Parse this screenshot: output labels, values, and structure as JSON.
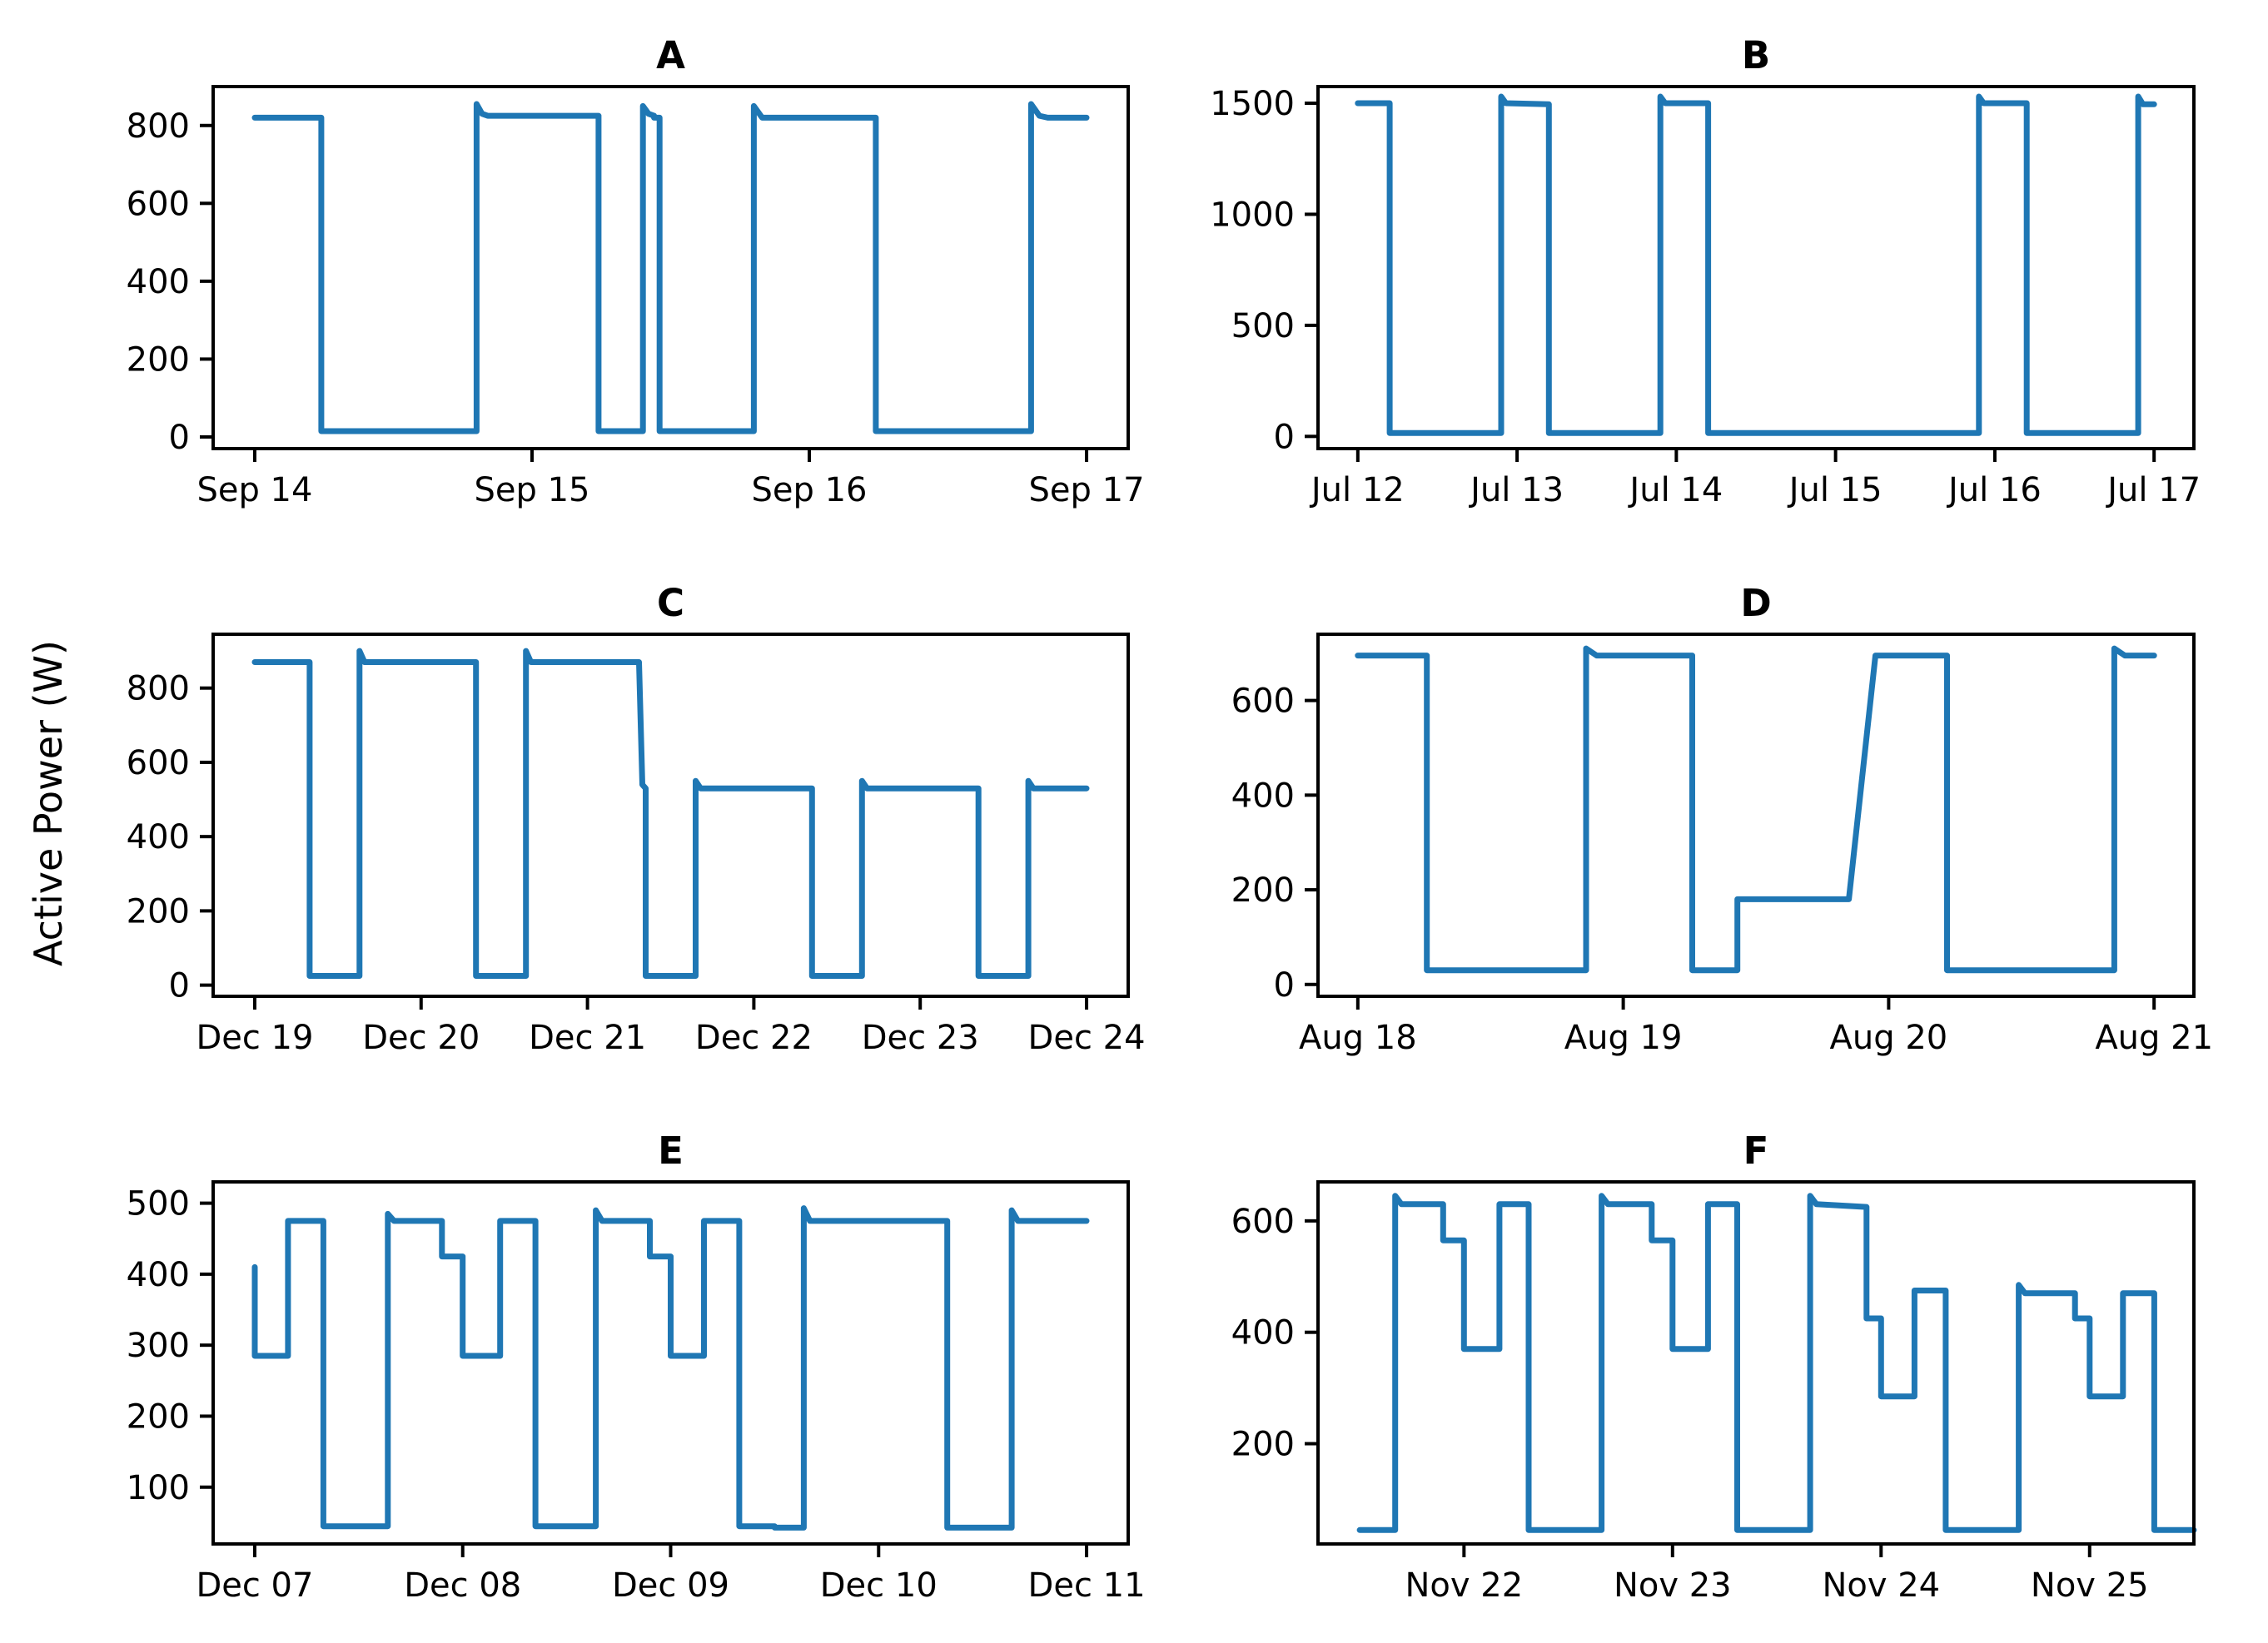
{
  "figure": {
    "ylabel": "Active Power (W)",
    "line_color": "#1f77b4"
  },
  "chart_data": [
    {
      "type": "line",
      "title": "A",
      "xlabel": "",
      "ylabel": "Active Power (W)",
      "xlim": [
        -0.15,
        3.15
      ],
      "ylim": [
        -30,
        900
      ],
      "xticks": [
        0,
        1,
        2,
        3
      ],
      "xtick_labels": [
        "Sep 14",
        "Sep 15",
        "Sep 16",
        "Sep 17"
      ],
      "yticks": [
        0,
        200,
        400,
        600,
        800
      ],
      "ytick_labels": [
        "0",
        "200",
        "400",
        "600",
        "800"
      ],
      "series": [
        {
          "name": "Active Power",
          "x": [
            0,
            0.24,
            0.24,
            0.8,
            0.8,
            0.82,
            0.84,
            1.24,
            1.24,
            1.4,
            1.4,
            1.42,
            1.44,
            1.44,
            1.46,
            1.46,
            1.8,
            1.8,
            1.83,
            2.24,
            2.24,
            2.8,
            2.8,
            2.83,
            2.86,
            3.0
          ],
          "y": [
            820,
            820,
            15,
            15,
            855,
            830,
            825,
            825,
            15,
            15,
            850,
            830,
            825,
            820,
            820,
            15,
            15,
            850,
            820,
            820,
            15,
            15,
            855,
            825,
            820,
            820
          ]
        }
      ]
    },
    {
      "type": "line",
      "title": "B",
      "xlabel": "",
      "ylabel": "",
      "xlim": [
        -0.25,
        5.25
      ],
      "ylim": [
        -55,
        1575
      ],
      "xticks": [
        0,
        1,
        2,
        3,
        4,
        5
      ],
      "xtick_labels": [
        "Jul 12",
        "Jul 13",
        "Jul 14",
        "Jul 15",
        "Jul 16",
        "Jul 17"
      ],
      "yticks": [
        0,
        500,
        1000,
        1500
      ],
      "ytick_labels": [
        "0",
        "500",
        "1000",
        "1500"
      ],
      "series": [
        {
          "name": "Active Power",
          "x": [
            0,
            0.2,
            0.2,
            0.9,
            0.9,
            0.93,
            1.2,
            1.2,
            1.9,
            1.9,
            1.93,
            2.2,
            2.2,
            3.9,
            3.9,
            3.93,
            4.2,
            4.2,
            4.9,
            4.9,
            4.93,
            5.0
          ],
          "y": [
            1500,
            1500,
            15,
            15,
            1530,
            1500,
            1495,
            15,
            15,
            1530,
            1500,
            1500,
            15,
            15,
            1530,
            1500,
            1500,
            15,
            15,
            1530,
            1495,
            1495
          ]
        }
      ]
    },
    {
      "type": "line",
      "title": "C",
      "xlabel": "",
      "ylabel": "",
      "xlim": [
        -0.25,
        5.25
      ],
      "ylim": [
        -30,
        945
      ],
      "xticks": [
        0,
        1,
        2,
        3,
        4,
        5
      ],
      "xtick_labels": [
        "Dec 19",
        "Dec 20",
        "Dec 21",
        "Dec 22",
        "Dec 23",
        "Dec 24"
      ],
      "yticks": [
        0,
        200,
        400,
        600,
        800
      ],
      "ytick_labels": [
        "0",
        "200",
        "400",
        "600",
        "800"
      ],
      "series": [
        {
          "name": "Active Power",
          "x": [
            0,
            0.33,
            0.33,
            0.63,
            0.63,
            0.66,
            1.33,
            1.33,
            1.63,
            1.63,
            1.66,
            2.31,
            2.33,
            2.35,
            2.35,
            2.65,
            2.65,
            2.68,
            3.35,
            3.35,
            3.65,
            3.65,
            3.68,
            4.35,
            4.35,
            4.65,
            4.65,
            4.68,
            5.0
          ],
          "y": [
            870,
            870,
            25,
            25,
            900,
            870,
            870,
            25,
            25,
            900,
            870,
            870,
            540,
            530,
            25,
            25,
            550,
            530,
            530,
            25,
            25,
            550,
            530,
            530,
            25,
            25,
            550,
            530,
            530
          ]
        }
      ]
    },
    {
      "type": "line",
      "title": "D",
      "xlabel": "",
      "ylabel": "",
      "xlim": [
        -0.15,
        3.15
      ],
      "ylim": [
        -25,
        740
      ],
      "xticks": [
        0,
        1,
        2,
        3
      ],
      "xtick_labels": [
        "Aug 18",
        "Aug 19",
        "Aug 20",
        "Aug 21"
      ],
      "yticks": [
        0,
        200,
        400,
        600
      ],
      "ytick_labels": [
        "0",
        "200",
        "400",
        "600"
      ],
      "series": [
        {
          "name": "Active Power",
          "x": [
            0,
            0.26,
            0.26,
            0.86,
            0.86,
            0.9,
            1.26,
            1.26,
            1.43,
            1.43,
            1.85,
            1.95,
            2.22,
            2.22,
            2.85,
            2.85,
            2.89,
            3.0
          ],
          "y": [
            695,
            695,
            30,
            30,
            710,
            695,
            695,
            30,
            30,
            180,
            180,
            695,
            695,
            30,
            30,
            710,
            695,
            695
          ]
        }
      ]
    },
    {
      "type": "line",
      "title": "E",
      "xlabel": "",
      "ylabel": "",
      "xlim": [
        -0.2,
        4.2
      ],
      "ylim": [
        20,
        530
      ],
      "xticks": [
        0,
        1,
        2,
        3,
        4
      ],
      "xtick_labels": [
        "Dec 07",
        "Dec 08",
        "Dec 09",
        "Dec 10",
        "Dec 11"
      ],
      "yticks": [
        100,
        200,
        300,
        400,
        500
      ],
      "ytick_labels": [
        "100",
        "200",
        "300",
        "400",
        "500"
      ],
      "series": [
        {
          "name": "Active Power",
          "x": [
            0,
            0,
            0.16,
            0.16,
            0.33,
            0.33,
            0.64,
            0.64,
            0.67,
            0.9,
            0.9,
            1.0,
            1.0,
            1.18,
            1.18,
            1.35,
            1.35,
            1.64,
            1.64,
            1.67,
            1.9,
            1.9,
            2.0,
            2.0,
            2.16,
            2.16,
            2.33,
            2.33,
            2.5,
            2.5,
            2.64,
            2.64,
            2.67,
            3.33,
            3.33,
            3.64,
            3.64,
            3.67,
            4.0
          ],
          "y": [
            410,
            285,
            285,
            475,
            475,
            45,
            45,
            485,
            475,
            475,
            425,
            425,
            285,
            285,
            475,
            475,
            45,
            45,
            490,
            475,
            475,
            425,
            425,
            285,
            285,
            475,
            475,
            45,
            45,
            43,
            43,
            493,
            475,
            475,
            43,
            43,
            490,
            475,
            475
          ]
        }
      ]
    },
    {
      "type": "line",
      "title": "F",
      "xlabel": "",
      "ylabel": "",
      "xlim": [
        -0.7,
        3.5
      ],
      "ylim": [
        20,
        670
      ],
      "xticks": [
        0,
        1,
        2,
        3
      ],
      "xtick_labels": [
        "Nov 22",
        "Nov 23",
        "Nov 24",
        "Nov 25"
      ],
      "yticks": [
        200,
        400,
        600
      ],
      "ytick_labels": [
        "200",
        "400",
        "600"
      ],
      "series": [
        {
          "name": "Active Power",
          "x": [
            -0.5,
            -0.33,
            -0.33,
            -0.3,
            -0.1,
            -0.1,
            0.0,
            0.0,
            0.17,
            0.17,
            0.31,
            0.31,
            0.66,
            0.66,
            0.69,
            0.9,
            0.9,
            1.0,
            1.0,
            1.17,
            1.17,
            1.31,
            1.31,
            1.66,
            1.66,
            1.69,
            1.93,
            1.93,
            2.0,
            2.0,
            2.16,
            2.16,
            2.31,
            2.31,
            2.66,
            2.66,
            2.69,
            2.93,
            2.93,
            3.0,
            3.0,
            3.16,
            3.16,
            3.31,
            3.31,
            3.5
          ],
          "y": [
            45,
            45,
            645,
            630,
            630,
            565,
            565,
            370,
            370,
            630,
            630,
            45,
            45,
            645,
            630,
            630,
            565,
            565,
            370,
            370,
            630,
            630,
            45,
            45,
            645,
            630,
            625,
            425,
            425,
            285,
            285,
            475,
            475,
            45,
            45,
            485,
            470,
            470,
            425,
            425,
            285,
            285,
            470,
            470,
            45,
            45
          ]
        }
      ]
    }
  ]
}
